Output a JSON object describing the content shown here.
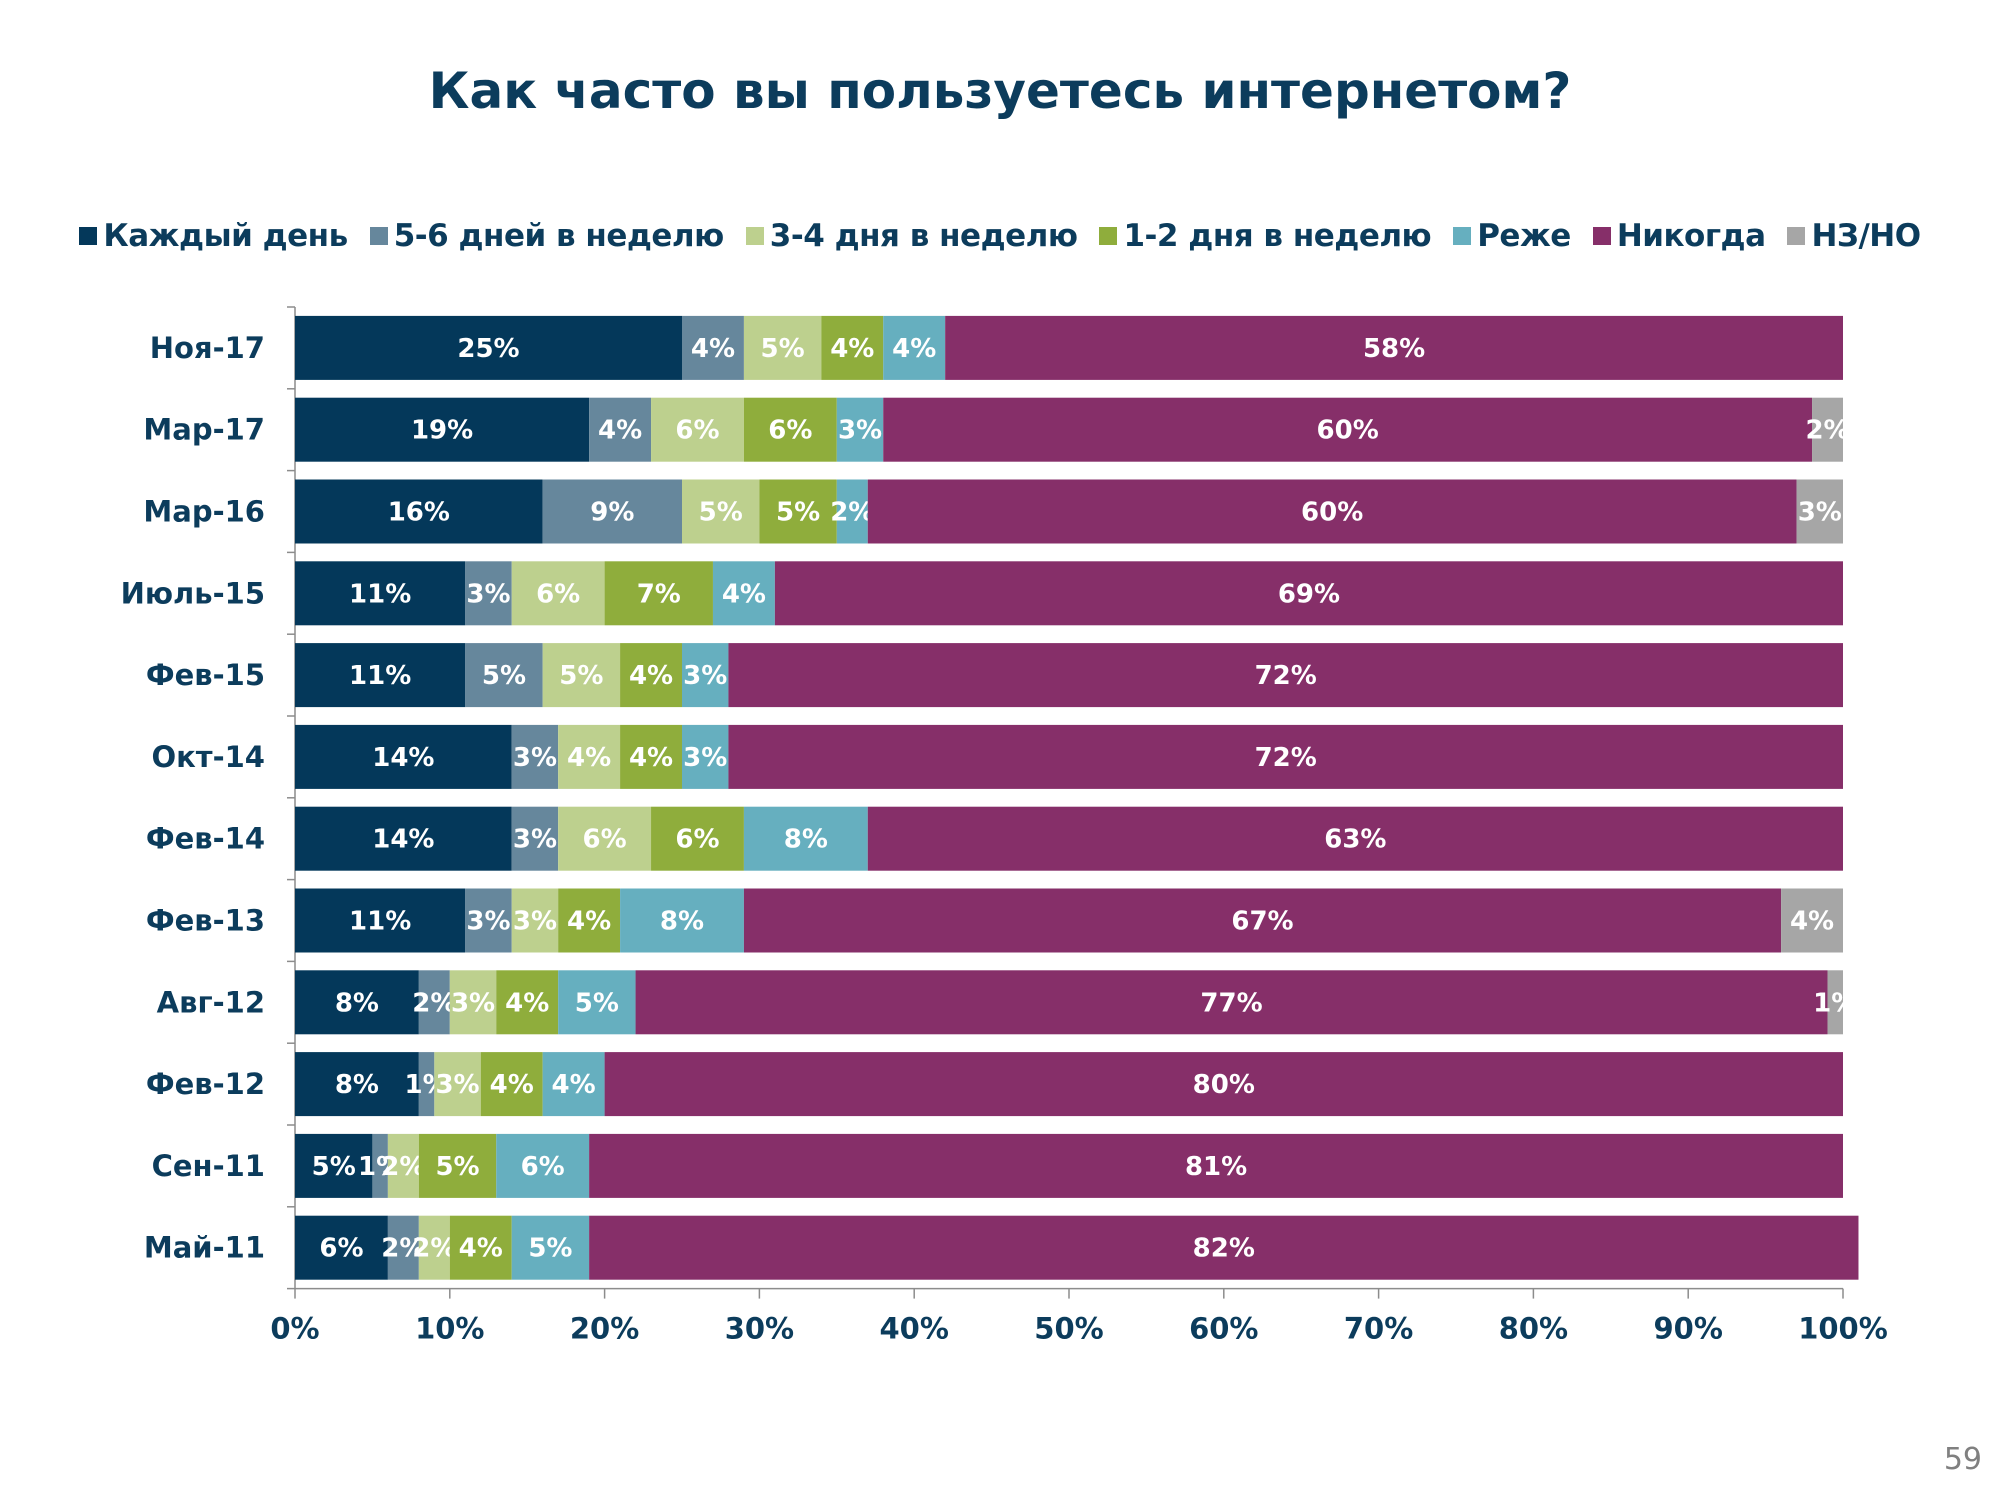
{
  "page": {
    "number": "59"
  },
  "chart_data": {
    "type": "bar",
    "orientation": "horizontal",
    "stacked": "percent",
    "title": "Как часто вы пользуетесь интернетом?",
    "xlabel": "",
    "ylabel": "",
    "xlim": [
      0,
      100
    ],
    "x_ticks": [
      "0%",
      "10%",
      "20%",
      "30%",
      "40%",
      "50%",
      "60%",
      "70%",
      "80%",
      "90%",
      "100%"
    ],
    "legend_position": "top",
    "grid": false,
    "categories": [
      "Ноя-17",
      "Мар-17",
      "Мар-16",
      "Июль-15",
      "Фев-15",
      "Окт-14",
      "Фев-14",
      "Фев-13",
      "Авг-12",
      "Фев-12",
      "Сен-11",
      "Май-11"
    ],
    "series": [
      {
        "name": "Каждый день",
        "color": "#04385a",
        "values": [
          25,
          19,
          16,
          11,
          11,
          14,
          14,
          11,
          8,
          8,
          5,
          6
        ]
      },
      {
        "name": "5-6 дней в неделю",
        "color": "#66879c",
        "values": [
          4,
          4,
          9,
          3,
          5,
          3,
          3,
          3,
          2,
          1,
          1,
          2
        ]
      },
      {
        "name": "3-4 дня в неделю",
        "color": "#bdd08e",
        "values": [
          5,
          6,
          5,
          6,
          5,
          4,
          6,
          3,
          3,
          3,
          2,
          2
        ]
      },
      {
        "name": "1-2 дня в неделю",
        "color": "#8fad3c",
        "values": [
          4,
          6,
          5,
          7,
          4,
          4,
          6,
          4,
          4,
          4,
          5,
          4
        ]
      },
      {
        "name": "Реже",
        "color": "#66afbf",
        "values": [
          4,
          3,
          2,
          4,
          3,
          3,
          8,
          8,
          5,
          4,
          6,
          5
        ]
      },
      {
        "name": "Никогда",
        "color": "#862f69",
        "values": [
          58,
          60,
          60,
          69,
          72,
          72,
          63,
          67,
          77,
          80,
          81,
          82
        ]
      },
      {
        "name": "НЗ/НО",
        "color": "#a6a6a6",
        "values": [
          0,
          2,
          3,
          0,
          0,
          0,
          0,
          4,
          1,
          0,
          0,
          0
        ]
      }
    ]
  }
}
